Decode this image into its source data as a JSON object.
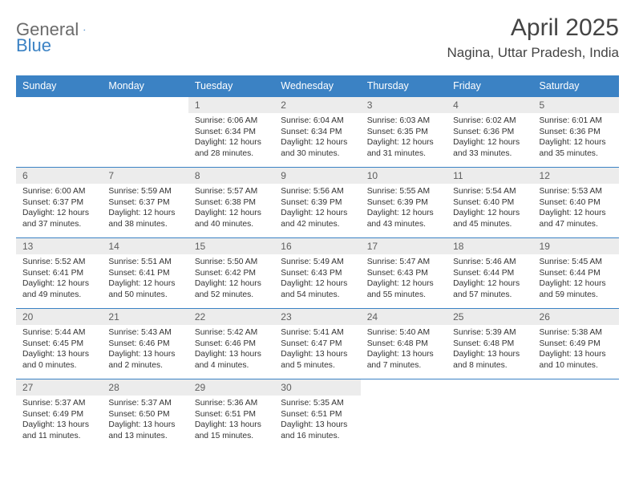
{
  "logo": {
    "general": "General",
    "blue": "Blue"
  },
  "title": "April 2025",
  "location": "Nagina, Uttar Pradesh, India",
  "colors": {
    "header_bg": "#3b82c4",
    "header_text": "#ffffff",
    "daynum_bg": "#ececec",
    "text": "#333333",
    "logo_gray": "#6b6b6b"
  },
  "weekdays": [
    "Sunday",
    "Monday",
    "Tuesday",
    "Wednesday",
    "Thursday",
    "Friday",
    "Saturday"
  ],
  "first_day_index": 2,
  "days": [
    {
      "n": 1,
      "sunrise": "6:06 AM",
      "sunset": "6:34 PM",
      "dlh": 12,
      "dlm": 28
    },
    {
      "n": 2,
      "sunrise": "6:04 AM",
      "sunset": "6:34 PM",
      "dlh": 12,
      "dlm": 30
    },
    {
      "n": 3,
      "sunrise": "6:03 AM",
      "sunset": "6:35 PM",
      "dlh": 12,
      "dlm": 31
    },
    {
      "n": 4,
      "sunrise": "6:02 AM",
      "sunset": "6:36 PM",
      "dlh": 12,
      "dlm": 33
    },
    {
      "n": 5,
      "sunrise": "6:01 AM",
      "sunset": "6:36 PM",
      "dlh": 12,
      "dlm": 35
    },
    {
      "n": 6,
      "sunrise": "6:00 AM",
      "sunset": "6:37 PM",
      "dlh": 12,
      "dlm": 37
    },
    {
      "n": 7,
      "sunrise": "5:59 AM",
      "sunset": "6:37 PM",
      "dlh": 12,
      "dlm": 38
    },
    {
      "n": 8,
      "sunrise": "5:57 AM",
      "sunset": "6:38 PM",
      "dlh": 12,
      "dlm": 40
    },
    {
      "n": 9,
      "sunrise": "5:56 AM",
      "sunset": "6:39 PM",
      "dlh": 12,
      "dlm": 42
    },
    {
      "n": 10,
      "sunrise": "5:55 AM",
      "sunset": "6:39 PM",
      "dlh": 12,
      "dlm": 43
    },
    {
      "n": 11,
      "sunrise": "5:54 AM",
      "sunset": "6:40 PM",
      "dlh": 12,
      "dlm": 45
    },
    {
      "n": 12,
      "sunrise": "5:53 AM",
      "sunset": "6:40 PM",
      "dlh": 12,
      "dlm": 47
    },
    {
      "n": 13,
      "sunrise": "5:52 AM",
      "sunset": "6:41 PM",
      "dlh": 12,
      "dlm": 49
    },
    {
      "n": 14,
      "sunrise": "5:51 AM",
      "sunset": "6:41 PM",
      "dlh": 12,
      "dlm": 50
    },
    {
      "n": 15,
      "sunrise": "5:50 AM",
      "sunset": "6:42 PM",
      "dlh": 12,
      "dlm": 52
    },
    {
      "n": 16,
      "sunrise": "5:49 AM",
      "sunset": "6:43 PM",
      "dlh": 12,
      "dlm": 54
    },
    {
      "n": 17,
      "sunrise": "5:47 AM",
      "sunset": "6:43 PM",
      "dlh": 12,
      "dlm": 55
    },
    {
      "n": 18,
      "sunrise": "5:46 AM",
      "sunset": "6:44 PM",
      "dlh": 12,
      "dlm": 57
    },
    {
      "n": 19,
      "sunrise": "5:45 AM",
      "sunset": "6:44 PM",
      "dlh": 12,
      "dlm": 59
    },
    {
      "n": 20,
      "sunrise": "5:44 AM",
      "sunset": "6:45 PM",
      "dlh": 13,
      "dlm": 0
    },
    {
      "n": 21,
      "sunrise": "5:43 AM",
      "sunset": "6:46 PM",
      "dlh": 13,
      "dlm": 2
    },
    {
      "n": 22,
      "sunrise": "5:42 AM",
      "sunset": "6:46 PM",
      "dlh": 13,
      "dlm": 4
    },
    {
      "n": 23,
      "sunrise": "5:41 AM",
      "sunset": "6:47 PM",
      "dlh": 13,
      "dlm": 5
    },
    {
      "n": 24,
      "sunrise": "5:40 AM",
      "sunset": "6:48 PM",
      "dlh": 13,
      "dlm": 7
    },
    {
      "n": 25,
      "sunrise": "5:39 AM",
      "sunset": "6:48 PM",
      "dlh": 13,
      "dlm": 8
    },
    {
      "n": 26,
      "sunrise": "5:38 AM",
      "sunset": "6:49 PM",
      "dlh": 13,
      "dlm": 10
    },
    {
      "n": 27,
      "sunrise": "5:37 AM",
      "sunset": "6:49 PM",
      "dlh": 13,
      "dlm": 11
    },
    {
      "n": 28,
      "sunrise": "5:37 AM",
      "sunset": "6:50 PM",
      "dlh": 13,
      "dlm": 13
    },
    {
      "n": 29,
      "sunrise": "5:36 AM",
      "sunset": "6:51 PM",
      "dlh": 13,
      "dlm": 15
    },
    {
      "n": 30,
      "sunrise": "5:35 AM",
      "sunset": "6:51 PM",
      "dlh": 13,
      "dlm": 16
    }
  ],
  "labels": {
    "sunrise": "Sunrise:",
    "sunset": "Sunset:",
    "daylight": "Daylight:",
    "hours": "hours",
    "and": "and",
    "minutes": "minutes."
  }
}
